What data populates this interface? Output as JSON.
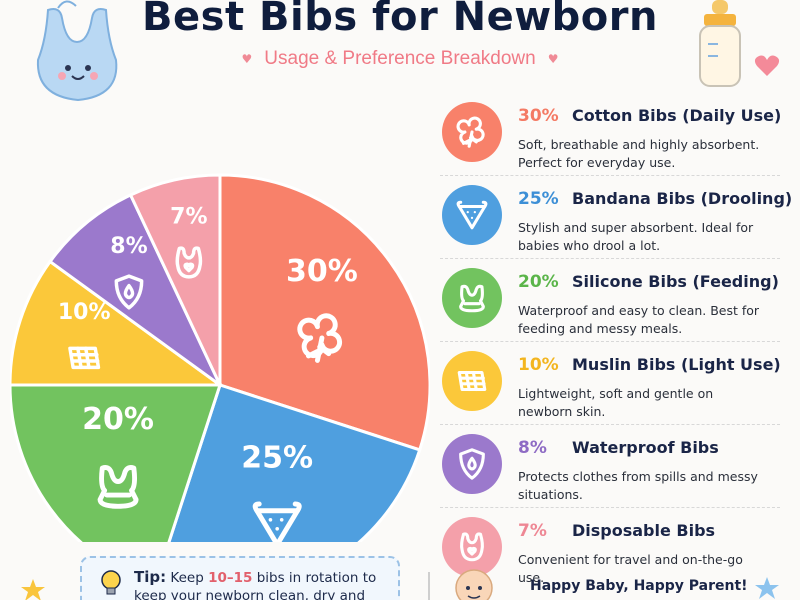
{
  "header": {
    "title": "Best Bibs for Newborn",
    "subtitle": "Usage & Preference Breakdown"
  },
  "chart_data": {
    "type": "pie",
    "title": "Best Bibs for Newborn",
    "subtitle": "Usage & Preference Breakdown",
    "slices": [
      {
        "label": "Cotton Bibs (Daily Use)",
        "value": 30,
        "display": "30%",
        "color": "#f8816a",
        "icon": "cotton-flower-icon"
      },
      {
        "label": "Bandana Bibs (Drooling)",
        "value": 25,
        "display": "25%",
        "color": "#4f9fdf",
        "icon": "bandana-bib-icon"
      },
      {
        "label": "Silicone Bibs (Feeding)",
        "value": 20,
        "display": "20%",
        "color": "#72c35f",
        "icon": "silicone-bib-icon"
      },
      {
        "label": "Muslin Bibs (Light Use)",
        "value": 10,
        "display": "10%",
        "color": "#fbc83a",
        "icon": "muslin-cloth-icon"
      },
      {
        "label": "Waterproof Bibs",
        "value": 8,
        "display": "8%",
        "color": "#9b79cc",
        "icon": "water-shield-icon"
      },
      {
        "label": "Disposable Bibs",
        "value": 7,
        "display": "7%",
        "color": "#f4a0aa",
        "icon": "disposable-bib-icon"
      }
    ]
  },
  "legend": [
    {
      "pct": "30%",
      "name": "Cotton Bibs (Daily Use)",
      "desc": "Soft, breathable and highly absorbent. Perfect for everyday use.",
      "color": "#f8816a",
      "pct_color": "#f47a64"
    },
    {
      "pct": "25%",
      "name": "Bandana Bibs (Drooling)",
      "desc": "Stylish and super absorbent. Ideal for babies who drool a lot.",
      "color": "#4f9fdf",
      "pct_color": "#3d8fd6"
    },
    {
      "pct": "20%",
      "name": "Silicone Bibs (Feeding)",
      "desc": "Waterproof and easy to clean. Best for feeding and messy meals.",
      "color": "#72c35f",
      "pct_color": "#5bb54a"
    },
    {
      "pct": "10%",
      "name": "Muslin Bibs (Light Use)",
      "desc": "Lightweight, soft and gentle on newborn skin.",
      "color": "#fbc83a",
      "pct_color": "#f3b51f"
    },
    {
      "pct": "8%",
      "name": "Waterproof Bibs",
      "desc": "Protects clothes from spills and messy situations.",
      "color": "#9b79cc",
      "pct_color": "#8e6bc4"
    },
    {
      "pct": "7%",
      "name": "Disposable Bibs",
      "desc": "Convenient for travel and on-the-go use.",
      "color": "#f4a0aa",
      "pct_color": "#ee8794"
    }
  ],
  "tip": {
    "label": "Tip:",
    "pre": "Keep",
    "number": "10–15",
    "post": "bibs in rotation to keep your newborn clean, dry and comfortable."
  },
  "footer": {
    "slogan": "Happy Baby, Happy Parent!"
  }
}
